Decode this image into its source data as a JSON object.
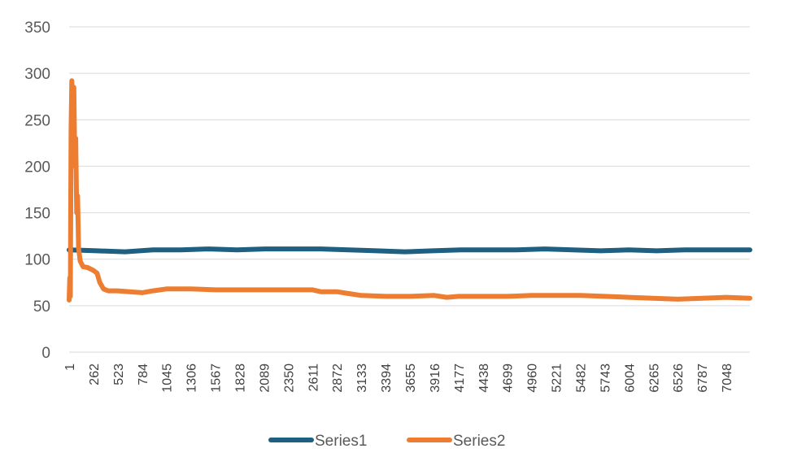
{
  "chart_data": {
    "type": "line",
    "title": "",
    "xlabel": "",
    "ylabel": "",
    "ylim": [
      0,
      350
    ],
    "yticks": [
      0,
      50,
      100,
      150,
      200,
      250,
      300,
      350
    ],
    "x_range": [
      1,
      7300
    ],
    "x_tick_labels": [
      "1",
      "262",
      "523",
      "784",
      "1045",
      "1306",
      "1567",
      "1828",
      "2089",
      "2350",
      "2611",
      "2872",
      "3133",
      "3394",
      "3655",
      "3916",
      "4177",
      "4438",
      "4699",
      "4960",
      "5221",
      "5482",
      "5743",
      "6004",
      "6265",
      "6526",
      "6787",
      "7048"
    ],
    "grid": true,
    "legend_position": "bottom",
    "series": [
      {
        "name": "Series1",
        "color": "#1f5f7f",
        "points": [
          [
            1,
            110
          ],
          [
            300,
            109
          ],
          [
            600,
            108
          ],
          [
            900,
            110
          ],
          [
            1200,
            110
          ],
          [
            1500,
            111
          ],
          [
            1800,
            110
          ],
          [
            2100,
            111
          ],
          [
            2400,
            111
          ],
          [
            2700,
            111
          ],
          [
            3000,
            110
          ],
          [
            3300,
            109
          ],
          [
            3600,
            108
          ],
          [
            3900,
            109
          ],
          [
            4200,
            110
          ],
          [
            4500,
            110
          ],
          [
            4800,
            110
          ],
          [
            5100,
            111
          ],
          [
            5400,
            110
          ],
          [
            5700,
            109
          ],
          [
            6000,
            110
          ],
          [
            6300,
            109
          ],
          [
            6600,
            110
          ],
          [
            6900,
            110
          ],
          [
            7300,
            110
          ]
        ]
      },
      {
        "name": "Series2",
        "color": "#ed7d31",
        "points": [
          [
            1,
            56
          ],
          [
            8,
            80
          ],
          [
            14,
            60
          ],
          [
            22,
            240
          ],
          [
            30,
            292
          ],
          [
            40,
            250
          ],
          [
            52,
            285
          ],
          [
            62,
            200
          ],
          [
            72,
            230
          ],
          [
            82,
            150
          ],
          [
            92,
            168
          ],
          [
            102,
            112
          ],
          [
            120,
            98
          ],
          [
            150,
            92
          ],
          [
            200,
            91
          ],
          [
            260,
            88
          ],
          [
            300,
            85
          ],
          [
            330,
            75
          ],
          [
            370,
            68
          ],
          [
            420,
            66
          ],
          [
            520,
            66
          ],
          [
            650,
            65
          ],
          [
            784,
            64
          ],
          [
            900,
            66
          ],
          [
            1045,
            68
          ],
          [
            1306,
            68
          ],
          [
            1567,
            67
          ],
          [
            1828,
            67
          ],
          [
            2089,
            67
          ],
          [
            2350,
            67
          ],
          [
            2611,
            67
          ],
          [
            2700,
            65
          ],
          [
            2872,
            65
          ],
          [
            3000,
            63
          ],
          [
            3133,
            61
          ],
          [
            3394,
            60
          ],
          [
            3655,
            60
          ],
          [
            3916,
            61
          ],
          [
            4050,
            59
          ],
          [
            4177,
            60
          ],
          [
            4438,
            60
          ],
          [
            4699,
            60
          ],
          [
            4960,
            61
          ],
          [
            5221,
            61
          ],
          [
            5482,
            61
          ],
          [
            5743,
            60
          ],
          [
            6004,
            59
          ],
          [
            6265,
            58
          ],
          [
            6526,
            57
          ],
          [
            6787,
            58
          ],
          [
            7048,
            59
          ],
          [
            7300,
            58
          ]
        ]
      }
    ]
  }
}
